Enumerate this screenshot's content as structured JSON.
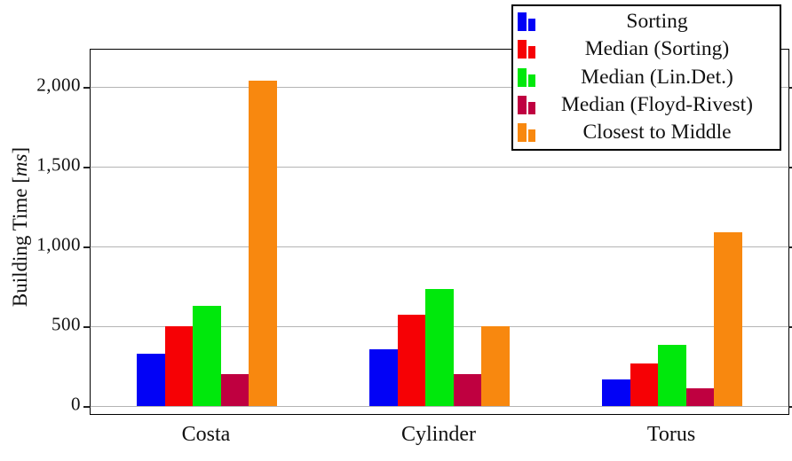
{
  "chart_data": {
    "type": "bar",
    "title": "",
    "categories": [
      "Costa",
      "Cylinder",
      "Torus"
    ],
    "series": [
      {
        "name": "Sorting",
        "color": "#0202f6",
        "values": [
          330,
          355,
          165
        ]
      },
      {
        "name": "Median (Sorting)",
        "color": "#f60105",
        "values": [
          500,
          570,
          265
        ]
      },
      {
        "name": "Median (Lin.Det.)",
        "color": "#00e80c",
        "values": [
          630,
          735,
          385
        ]
      },
      {
        "name": "Median (Floyd-Rivest)",
        "color": "#bf0040",
        "values": [
          200,
          200,
          110
        ]
      },
      {
        "name": "Closest to Middle",
        "color": "#f8880f",
        "values": [
          2040,
          500,
          1090
        ]
      }
    ],
    "xlabel": "",
    "ylabel": "Building Time [ms]",
    "ylabel_parts": {
      "prefix": "Building Time [",
      "unit": "ms",
      "suffix": "]"
    },
    "yticks": [
      0,
      500,
      1000,
      1500,
      2000
    ],
    "ytick_labels": [
      "0",
      "500",
      "1,000",
      "1,500",
      "2,000"
    ],
    "ylim": [
      -60,
      2230
    ],
    "grid": "horizontal",
    "gridline_color": "#b4b4b4",
    "legend_position": "top-right",
    "legend": [
      "Sorting",
      "Median (Sorting)",
      "Median (Lin.Det.)",
      "Median (Floyd-Rivest)",
      "Closest to Middle"
    ]
  }
}
